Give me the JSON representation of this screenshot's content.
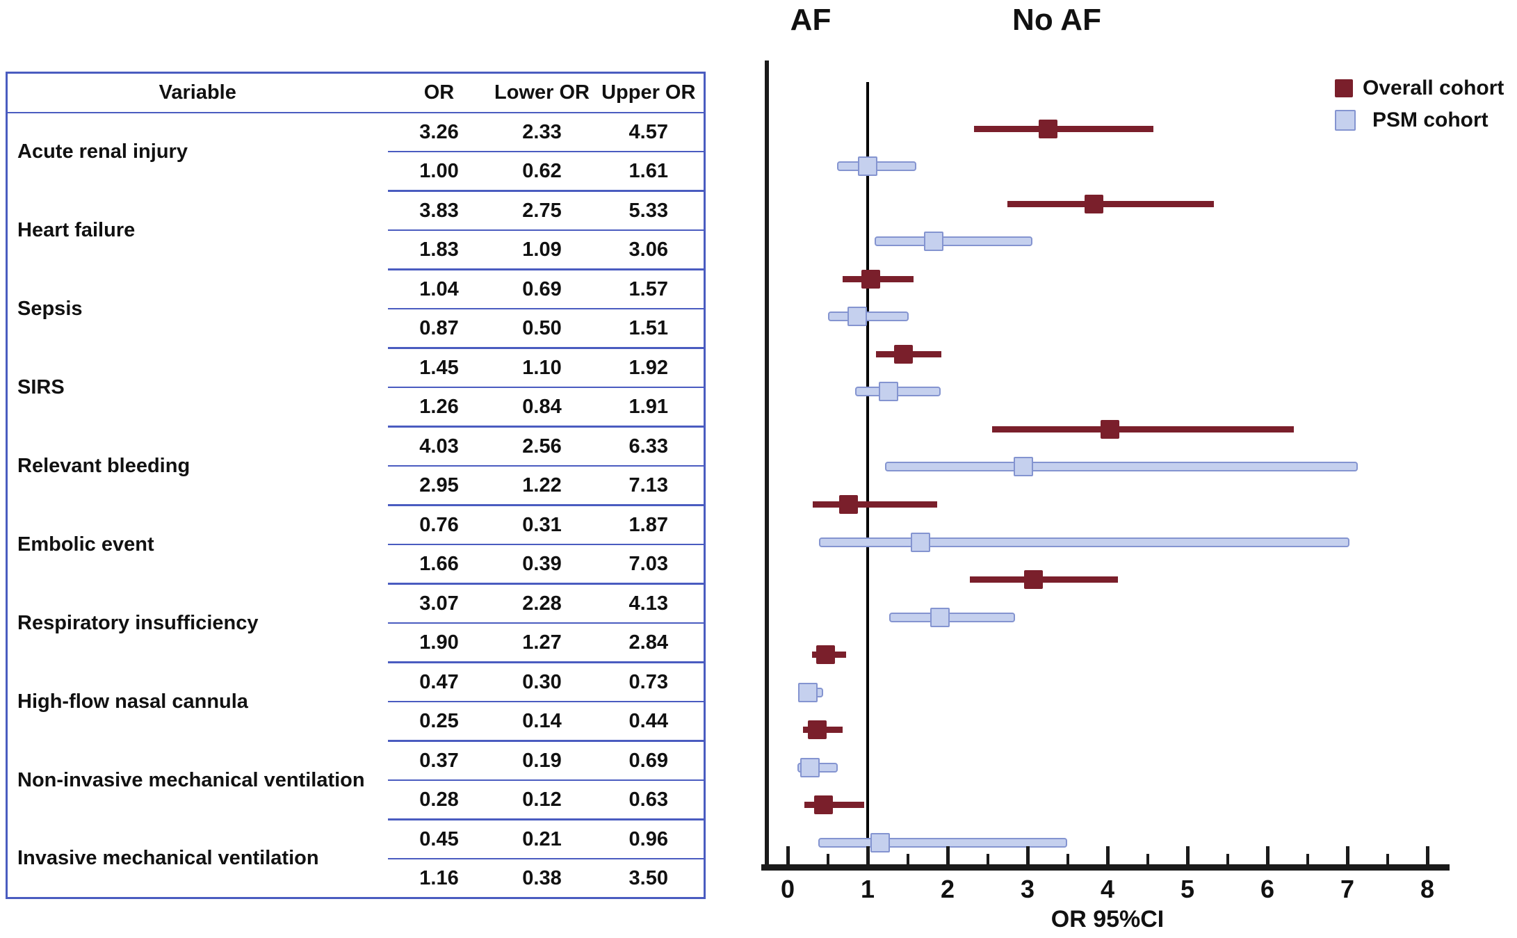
{
  "colors": {
    "overall": "#7a1f2b",
    "psm_fill": "#c5d0ee",
    "psm_border": "#8494d0",
    "table_border": "#4a5cc0",
    "axis": "#1a1a1a",
    "text": "#111111"
  },
  "table": {
    "headers": [
      "Variable",
      "OR",
      "Lower OR",
      "Upper OR"
    ],
    "rows": [
      {
        "variable": "Acute renal injury",
        "overall": {
          "or": "3.26",
          "lower": "2.33",
          "upper": "4.57"
        },
        "psm": {
          "or": "1.00",
          "lower": "0.62",
          "upper": "1.61"
        }
      },
      {
        "variable": "Heart failure",
        "overall": {
          "or": "3.83",
          "lower": "2.75",
          "upper": "5.33"
        },
        "psm": {
          "or": "1.83",
          "lower": "1.09",
          "upper": "3.06"
        }
      },
      {
        "variable": "Sepsis",
        "overall": {
          "or": "1.04",
          "lower": "0.69",
          "upper": "1.57"
        },
        "psm": {
          "or": "0.87",
          "lower": "0.50",
          "upper": "1.51"
        }
      },
      {
        "variable": "SIRS",
        "overall": {
          "or": "1.45",
          "lower": "1.10",
          "upper": "1.92"
        },
        "psm": {
          "or": "1.26",
          "lower": "0.84",
          "upper": "1.91"
        }
      },
      {
        "variable": "Relevant bleeding",
        "overall": {
          "or": "4.03",
          "lower": "2.56",
          "upper": "6.33"
        },
        "psm": {
          "or": "2.95",
          "lower": "1.22",
          "upper": "7.13"
        }
      },
      {
        "variable": "Embolic event",
        "overall": {
          "or": "0.76",
          "lower": "0.31",
          "upper": "1.87"
        },
        "psm": {
          "or": "1.66",
          "lower": "0.39",
          "upper": "7.03"
        }
      },
      {
        "variable": "Respiratory insufficiency",
        "overall": {
          "or": "3.07",
          "lower": "2.28",
          "upper": "4.13"
        },
        "psm": {
          "or": "1.90",
          "lower": "1.27",
          "upper": "2.84"
        }
      },
      {
        "variable": "High-flow nasal cannula",
        "overall": {
          "or": "0.47",
          "lower": "0.30",
          "upper": "0.73"
        },
        "psm": {
          "or": "0.25",
          "lower": "0.14",
          "upper": "0.44"
        }
      },
      {
        "variable": "Non-invasive mechanical ventilation",
        "overall": {
          "or": "0.37",
          "lower": "0.19",
          "upper": "0.69"
        },
        "psm": {
          "or": "0.28",
          "lower": "0.12",
          "upper": "0.63"
        }
      },
      {
        "variable": "Invasive mechanical ventilation",
        "overall": {
          "or": "0.45",
          "lower": "0.21",
          "upper": "0.96"
        },
        "psm": {
          "or": "1.16",
          "lower": "0.38",
          "upper": "3.50"
        }
      }
    ]
  },
  "chart_data": {
    "type": "forest",
    "group_header_left": "AF",
    "group_header_right": "No AF",
    "xlabel": "OR 95%CI",
    "x_axis": {
      "min": 0,
      "max": 8,
      "major_step": 1,
      "minor_step": 0.5,
      "tick_labels": [
        "0",
        "1",
        "2",
        "3",
        "4",
        "5",
        "6",
        "7",
        "8"
      ]
    },
    "reference_line_x": 1,
    "legend": [
      {
        "name": "Overall cohort",
        "key": "overall"
      },
      {
        "name": "PSM cohort",
        "key": "psm"
      }
    ],
    "categories": [
      "Acute renal injury",
      "Heart failure",
      "Sepsis",
      "SIRS",
      "Relevant bleeding",
      "Embolic event",
      "Respiratory insufficiency",
      "High-flow nasal cannula",
      "Non-invasive mechanical ventilation",
      "Invasive mechanical ventilation"
    ],
    "series": [
      {
        "name": "Overall cohort",
        "values": [
          {
            "or": 3.26,
            "lower": 2.33,
            "upper": 4.57
          },
          {
            "or": 3.83,
            "lower": 2.75,
            "upper": 5.33
          },
          {
            "or": 1.04,
            "lower": 0.69,
            "upper": 1.57
          },
          {
            "or": 1.45,
            "lower": 1.1,
            "upper": 1.92
          },
          {
            "or": 4.03,
            "lower": 2.56,
            "upper": 6.33
          },
          {
            "or": 0.76,
            "lower": 0.31,
            "upper": 1.87
          },
          {
            "or": 3.07,
            "lower": 2.28,
            "upper": 4.13
          },
          {
            "or": 0.47,
            "lower": 0.3,
            "upper": 0.73
          },
          {
            "or": 0.37,
            "lower": 0.19,
            "upper": 0.69
          },
          {
            "or": 0.45,
            "lower": 0.21,
            "upper": 0.96
          }
        ]
      },
      {
        "name": "PSM cohort",
        "values": [
          {
            "or": 1.0,
            "lower": 0.62,
            "upper": 1.61
          },
          {
            "or": 1.83,
            "lower": 1.09,
            "upper": 3.06
          },
          {
            "or": 0.87,
            "lower": 0.5,
            "upper": 1.51
          },
          {
            "or": 1.26,
            "lower": 0.84,
            "upper": 1.91
          },
          {
            "or": 2.95,
            "lower": 1.22,
            "upper": 7.13
          },
          {
            "or": 1.66,
            "lower": 0.39,
            "upper": 7.03
          },
          {
            "or": 1.9,
            "lower": 1.27,
            "upper": 2.84
          },
          {
            "or": 0.25,
            "lower": 0.14,
            "upper": 0.44
          },
          {
            "or": 0.28,
            "lower": 0.12,
            "upper": 0.63
          },
          {
            "or": 1.16,
            "lower": 0.38,
            "upper": 3.5
          }
        ]
      }
    ]
  }
}
